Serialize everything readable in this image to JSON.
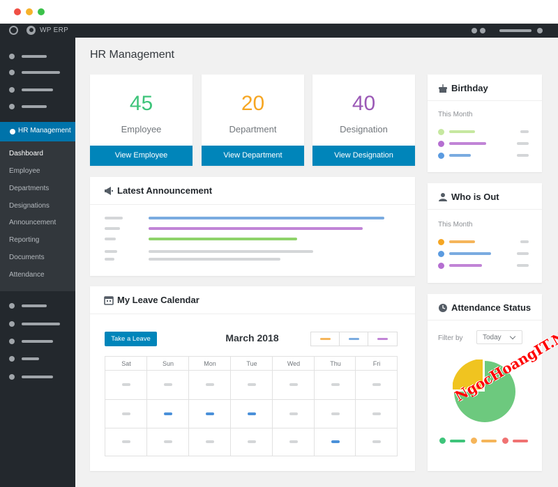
{
  "wpbar": {
    "title": "WP ERP"
  },
  "sidebar": {
    "active_label": "HR Management",
    "sub_items": [
      "Dashboard",
      "Employee",
      "Departments",
      "Designations",
      "Announcement",
      "Reporting",
      "Documents",
      "Attendance"
    ],
    "current": "Dashboard"
  },
  "page": {
    "title": "HR Management"
  },
  "stats": [
    {
      "value": "45",
      "label": "Employee",
      "button": "View Employee",
      "color": "#3ec47a"
    },
    {
      "value": "20",
      "label": "Department",
      "button": "View Department",
      "color": "#f6a623"
    },
    {
      "value": "40",
      "label": "Designation",
      "button": "View Designation",
      "color": "#9b59b6"
    }
  ],
  "announcement": {
    "title": "Latest Announcement",
    "icon": "megaphone-icon"
  },
  "calendar": {
    "title": "My Leave Calendar",
    "icon": "calendar-icon",
    "take_leave": "Take a Leave",
    "month": "March 2018",
    "days": [
      "Sat",
      "Sun",
      "Mon",
      "Tue",
      "Wed",
      "Thu",
      "Fri"
    ]
  },
  "birthday": {
    "title": "Birthday",
    "subtitle": "This Month",
    "icon": "cake-icon"
  },
  "who_is_out": {
    "title": "Who is Out",
    "subtitle": "This Month",
    "icon": "user-icon"
  },
  "attendance": {
    "title": "Attendance Status",
    "icon": "clock-icon",
    "filter_label": "Filter by",
    "filter_value": "Today"
  },
  "chart_data": {
    "type": "pie",
    "values": [
      75,
      25
    ],
    "colors": [
      "#6dc97e",
      "#f0c420"
    ]
  },
  "colors": {
    "accent": "#0085ba",
    "green": "#3ec47a",
    "orange": "#f6a623",
    "purple": "#9b59b6",
    "blue": "#4a90d9"
  },
  "watermark": "NgocHoangIT.Net"
}
